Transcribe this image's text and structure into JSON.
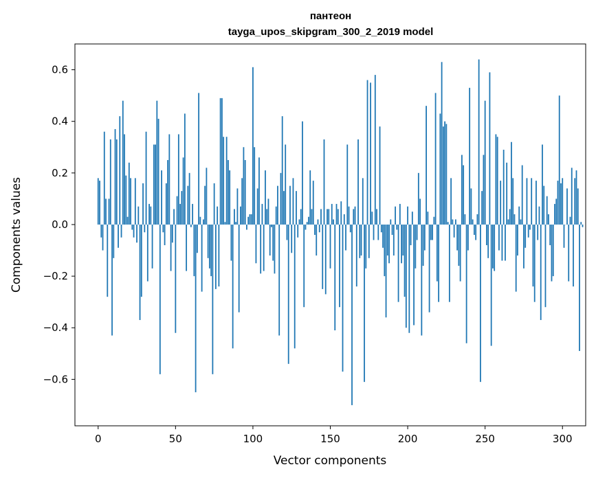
{
  "chart_data": {
    "type": "bar",
    "title_lines": [
      "пантеон",
      "tayga_upos_skipgram_300_2_2019 model"
    ],
    "xlabel": "Vector components",
    "ylabel": "Components values",
    "xlim": [
      -15,
      315
    ],
    "ylim": [
      -0.78,
      0.7
    ],
    "xticks": [
      0,
      50,
      100,
      150,
      200,
      250,
      300
    ],
    "yticks": [
      -0.6,
      -0.4,
      -0.2,
      0.0,
      0.2,
      0.4,
      0.6
    ],
    "ytick_labels": [
      "−0.6",
      "−0.4",
      "−0.2",
      "0.0",
      "0.2",
      "0.4",
      "0.6"
    ],
    "xtick_labels": [
      "0",
      "50",
      "100",
      "150",
      "200",
      "250",
      "300"
    ],
    "bar_color": "#1f77b4",
    "grid": false,
    "values": [
      0.18,
      0.17,
      -0.05,
      -0.1,
      0.36,
      0.1,
      -0.28,
      0.1,
      0.33,
      -0.43,
      -0.13,
      0.37,
      0.33,
      -0.09,
      0.42,
      -0.05,
      0.48,
      0.35,
      0.19,
      0.03,
      0.24,
      0.18,
      -0.02,
      -0.05,
      0.18,
      -0.07,
      0.07,
      -0.37,
      -0.28,
      0.16,
      -0.03,
      0.36,
      -0.22,
      0.08,
      0.07,
      -0.17,
      0.31,
      0.31,
      0.48,
      0.41,
      -0.58,
      0.21,
      -0.03,
      -0.08,
      0.16,
      0.25,
      0.35,
      -0.18,
      -0.07,
      0.06,
      -0.42,
      0.11,
      0.35,
      0.08,
      0.13,
      0.26,
      0.43,
      -0.18,
      0.15,
      0.2,
      -0.01,
      0.08,
      -0.2,
      -0.65,
      -0.11,
      0.51,
      0.03,
      -0.26,
      0.02,
      0.15,
      0.22,
      -0.13,
      -0.17,
      -0.2,
      -0.58,
      0.16,
      -0.25,
      0.07,
      -0.24,
      0.49,
      0.49,
      0.34,
      0.01,
      0.34,
      0.25,
      0.21,
      -0.14,
      -0.48,
      0.06,
      0.01,
      0.14,
      -0.34,
      0.07,
      0.18,
      0.3,
      0.25,
      -0.02,
      0.03,
      0.04,
      0.04,
      0.61,
      0.3,
      -0.15,
      0.14,
      0.26,
      -0.19,
      0.08,
      -0.18,
      0.21,
      0.06,
      0.1,
      -0.12,
      -0.01,
      -0.14,
      -0.19,
      0.07,
      0.15,
      -0.43,
      0.2,
      0.42,
      0.13,
      0.31,
      -0.06,
      -0.54,
      0.15,
      -0.11,
      0.18,
      -0.48,
      0.13,
      -0.05,
      0.02,
      0.06,
      0.4,
      -0.32,
      -0.02,
      0.01,
      0.03,
      0.21,
      0.06,
      0.17,
      -0.04,
      -0.12,
      0.02,
      -0.03,
      0.06,
      -0.25,
      0.33,
      -0.27,
      0.06,
      0.06,
      -0.17,
      0.08,
      0.02,
      -0.41,
      0.08,
      0.06,
      -0.32,
      0.09,
      -0.57,
      0.04,
      -0.1,
      0.31,
      0.07,
      -0.03,
      -0.7,
      0.06,
      0.07,
      -0.24,
      0.33,
      -0.13,
      -0.12,
      0.18,
      -0.61,
      -0.17,
      0.56,
      -0.13,
      0.55,
      0.05,
      -0.06,
      0.58,
      0.06,
      -0.06,
      0.38,
      -0.03,
      -0.09,
      -0.2,
      -0.36,
      -0.12,
      -0.15,
      0.02,
      -0.04,
      -0.12,
      0.07,
      -0.02,
      -0.3,
      0.08,
      -0.15,
      -0.12,
      -0.28,
      -0.4,
      0.07,
      -0.42,
      -0.08,
      0.05,
      -0.39,
      -0.17,
      -0.06,
      0.2,
      0.1,
      -0.43,
      -0.16,
      -0.1,
      0.46,
      0.05,
      -0.34,
      -0.06,
      -0.06,
      0.03,
      0.51,
      -0.22,
      -0.3,
      0.43,
      0.63,
      0.38,
      0.4,
      0.39,
      0.01,
      -0.3,
      0.18,
      0.02,
      -0.05,
      0.02,
      -0.1,
      -0.16,
      -0.22,
      0.27,
      0.23,
      0.04,
      -0.46,
      -0.1,
      0.53,
      0.14,
      0.02,
      -0.04,
      -0.06,
      0.04,
      0.64,
      -0.61,
      0.13,
      0.27,
      0.48,
      -0.08,
      -0.13,
      0.59,
      -0.47,
      -0.17,
      -0.18,
      0.35,
      0.34,
      -0.1,
      0.17,
      -0.14,
      0.29,
      -0.14,
      0.24,
      0.02,
      0.06,
      0.32,
      0.18,
      0.04,
      -0.26,
      -0.12,
      0.07,
      0.02,
      0.23,
      -0.17,
      -0.09,
      0.18,
      -0.05,
      -0.02,
      0.18,
      -0.24,
      -0.3,
      0.17,
      -0.06,
      0.07,
      -0.37,
      0.31,
      0.15,
      -0.32,
      0.11,
      0.04,
      -0.08,
      -0.22,
      -0.2,
      0.08,
      0.1,
      0.17,
      0.5,
      0.16,
      0.18,
      -0.09,
      0.0,
      0.14,
      -0.22,
      0.03,
      0.22,
      -0.24,
      0.18,
      0.21,
      0.14,
      -0.49,
      0.01,
      -0.01
    ]
  }
}
